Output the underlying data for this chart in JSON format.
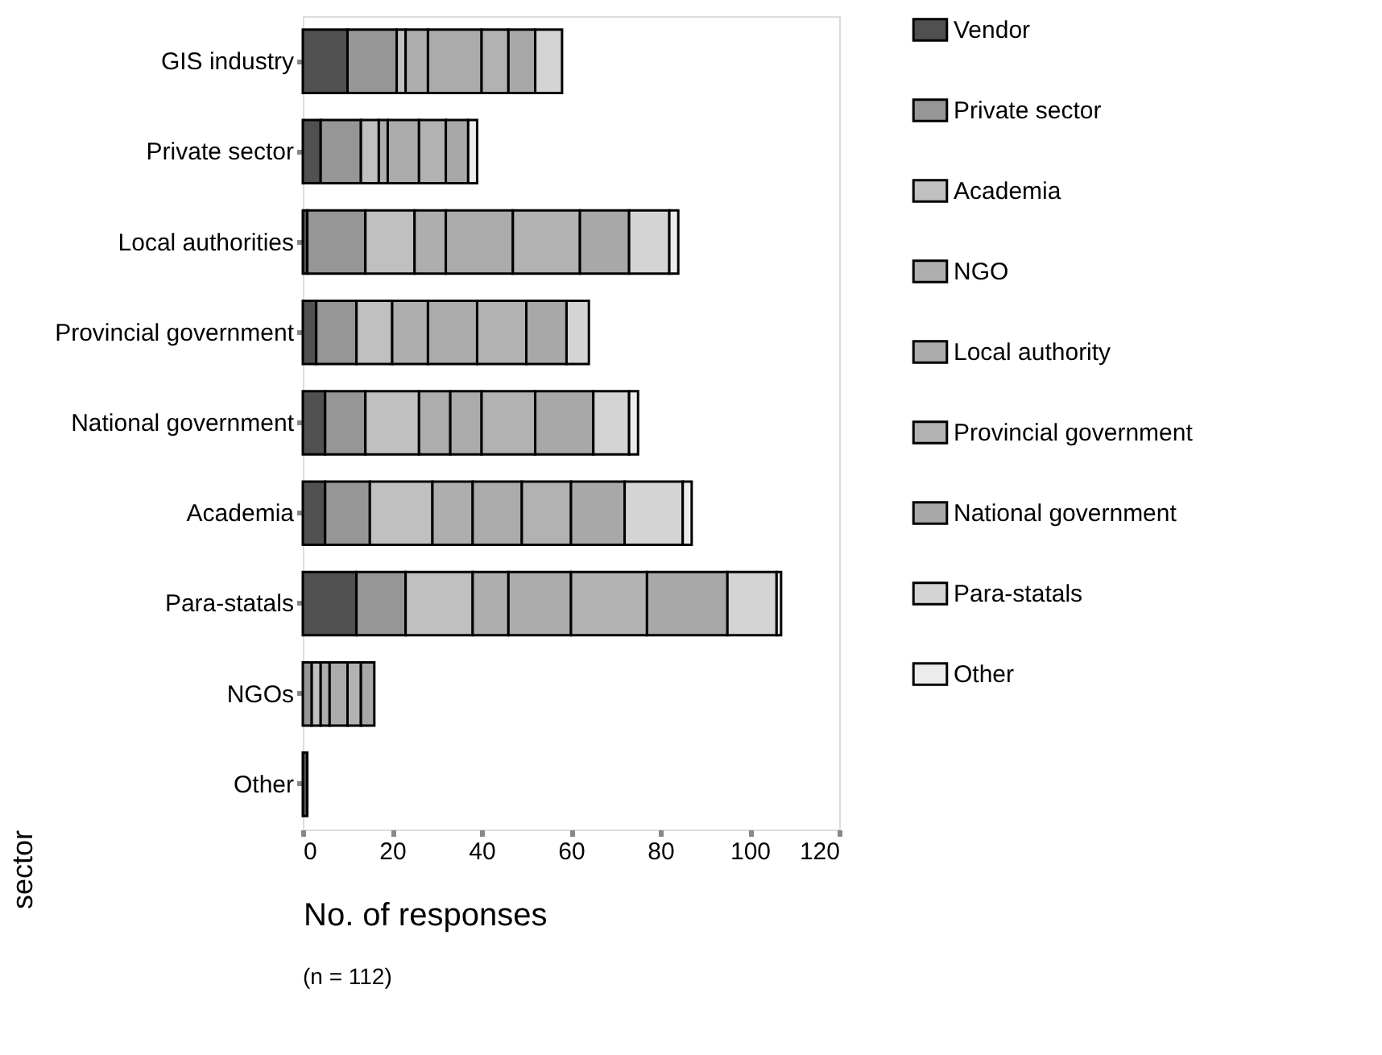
{
  "chart_data": {
    "type": "bar",
    "orientation": "horizontal",
    "stacked": true,
    "xlabel": "No. of responses",
    "ylabel": "sector",
    "categories": [
      "GIS industry",
      "Private sector",
      "Local authorities",
      "Provincial government",
      "National government ",
      "Academia",
      "Para-statals",
      "NGOs",
      "Other"
    ],
    "series": [
      {
        "name": "Vendor",
        "color": "#505050",
        "values": [
          10,
          4,
          1,
          3,
          5,
          5,
          12,
          0,
          1
        ]
      },
      {
        "name": "Private sector",
        "color": "#969696",
        "values": [
          11,
          9,
          13,
          9,
          9,
          10,
          11,
          2,
          0
        ]
      },
      {
        "name": "Academia",
        "color": "#c0c0c0",
        "values": [
          2,
          4,
          11,
          8,
          12,
          14,
          15,
          2,
          0
        ]
      },
      {
        "name": "NGO",
        "color": "#aeaeae",
        "values": [
          5,
          2,
          7,
          8,
          7,
          9,
          8,
          2,
          0
        ]
      },
      {
        "name": "Local authority",
        "color": "#ababab",
        "values": [
          12,
          7,
          15,
          11,
          7,
          11,
          14,
          4,
          0
        ]
      },
      {
        "name": "Provincial government",
        "color": "#b2b2b2",
        "values": [
          6,
          6,
          15,
          11,
          12,
          11,
          17,
          3,
          0
        ]
      },
      {
        "name": "National government",
        "color": "#a8a8a8",
        "values": [
          6,
          5,
          11,
          9,
          13,
          12,
          18,
          3,
          0
        ]
      },
      {
        "name": "Para-statals",
        "color": "#d4d4d4",
        "values": [
          6,
          0,
          9,
          5,
          8,
          13,
          11,
          0,
          0
        ]
      },
      {
        "name": "Other",
        "color": "#ececec",
        "values": [
          0,
          2,
          2,
          0,
          2,
          2,
          1,
          0,
          0
        ]
      }
    ],
    "xlim": [
      0,
      120
    ],
    "xticks": [
      0,
      20,
      40,
      60,
      80,
      100,
      120
    ],
    "grid": false,
    "legend": "right",
    "annotations": [
      "(n = 112)"
    ]
  }
}
